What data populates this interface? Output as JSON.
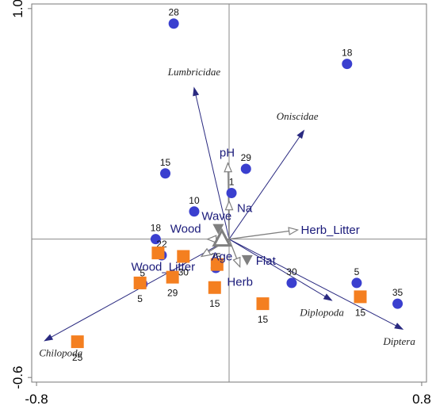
{
  "chart_data": {
    "type": "scatter",
    "title": "",
    "xlabel": "",
    "ylabel": "",
    "xlim": [
      -0.82,
      0.82
    ],
    "ylim": [
      -0.62,
      1.02
    ],
    "x_ticks": [
      {
        "value": -0.8,
        "label": "-0.8"
      },
      {
        "value": 0.8,
        "label": "0.8"
      }
    ],
    "y_ticks": [
      {
        "value": 1.0,
        "label": "1.0"
      },
      {
        "value": -0.6,
        "label": "-0.6"
      }
    ],
    "colors": {
      "circle": "#3a3fcf",
      "square": "#f47f20",
      "taxon_arrow": "#2a2a80",
      "env_arrow": "#7f7f7f",
      "centroid": "#7f7f7f"
    },
    "taxa": [
      {
        "name": "Lumbricidae",
        "x": -0.145,
        "y": 0.655
      },
      {
        "name": "Oniscidae",
        "x": 0.31,
        "y": 0.47
      },
      {
        "name": "Chilopoda",
        "x": -0.765,
        "y": -0.44
      },
      {
        "name": "Diplopoda",
        "x": 0.425,
        "y": -0.265
      },
      {
        "name": "Diptera",
        "x": 0.72,
        "y": -0.39
      }
    ],
    "env_arrows": [
      {
        "name": "pH",
        "x": -0.005,
        "y": 0.33
      },
      {
        "name": "Na",
        "x": 0.0,
        "y": 0.165
      },
      {
        "name": "Herb_Litter",
        "x": 0.285,
        "y": 0.04
      },
      {
        "name": "Wood",
        "x": -0.09,
        "y": 0.0
      },
      {
        "name": "Wood_Litter",
        "x": -0.115,
        "y": -0.075
      },
      {
        "name": "Herb",
        "x": 0.045,
        "y": -0.12
      }
    ],
    "centroids": [
      {
        "name": "Wave",
        "x": -0.045,
        "y": 0.045
      },
      {
        "name": "Flat",
        "x": 0.075,
        "y": -0.09
      },
      {
        "name": "Age",
        "x": -0.03,
        "y": 0.0
      }
    ],
    "circle_sites": [
      {
        "label": "28",
        "x": -0.23,
        "y": 0.935
      },
      {
        "label": "18",
        "x": 0.49,
        "y": 0.76
      },
      {
        "label": "29",
        "x": 0.07,
        "y": 0.305
      },
      {
        "label": "15",
        "x": -0.265,
        "y": 0.285
      },
      {
        "label": "1",
        "x": 0.01,
        "y": 0.2
      },
      {
        "label": "10",
        "x": -0.145,
        "y": 0.12
      },
      {
        "label": "18",
        "x": -0.305,
        "y": 0.0
      },
      {
        "label": "22",
        "x": -0.28,
        "y": -0.07
      },
      {
        "label": "25",
        "x": -0.055,
        "y": -0.125
      },
      {
        "label": "5",
        "x": -0.36,
        "y": -0.195
      },
      {
        "label": "30",
        "x": 0.26,
        "y": -0.19
      },
      {
        "label": "5",
        "x": 0.53,
        "y": -0.19
      },
      {
        "label": "35",
        "x": 0.7,
        "y": -0.28
      }
    ],
    "square_sites": [
      {
        "label": "30",
        "x": -0.19,
        "y": -0.075
      },
      {
        "label": "",
        "x": -0.295,
        "y": -0.06
      },
      {
        "label": "",
        "x": -0.05,
        "y": -0.11
      },
      {
        "label": "29",
        "x": -0.235,
        "y": -0.165
      },
      {
        "label": "5",
        "x": -0.37,
        "y": -0.19
      },
      {
        "label": "15",
        "x": -0.06,
        "y": -0.21
      },
      {
        "label": "15",
        "x": 0.14,
        "y": -0.28
      },
      {
        "label": "15",
        "x": 0.545,
        "y": -0.25
      },
      {
        "label": "25",
        "x": -0.63,
        "y": -0.445
      }
    ]
  }
}
